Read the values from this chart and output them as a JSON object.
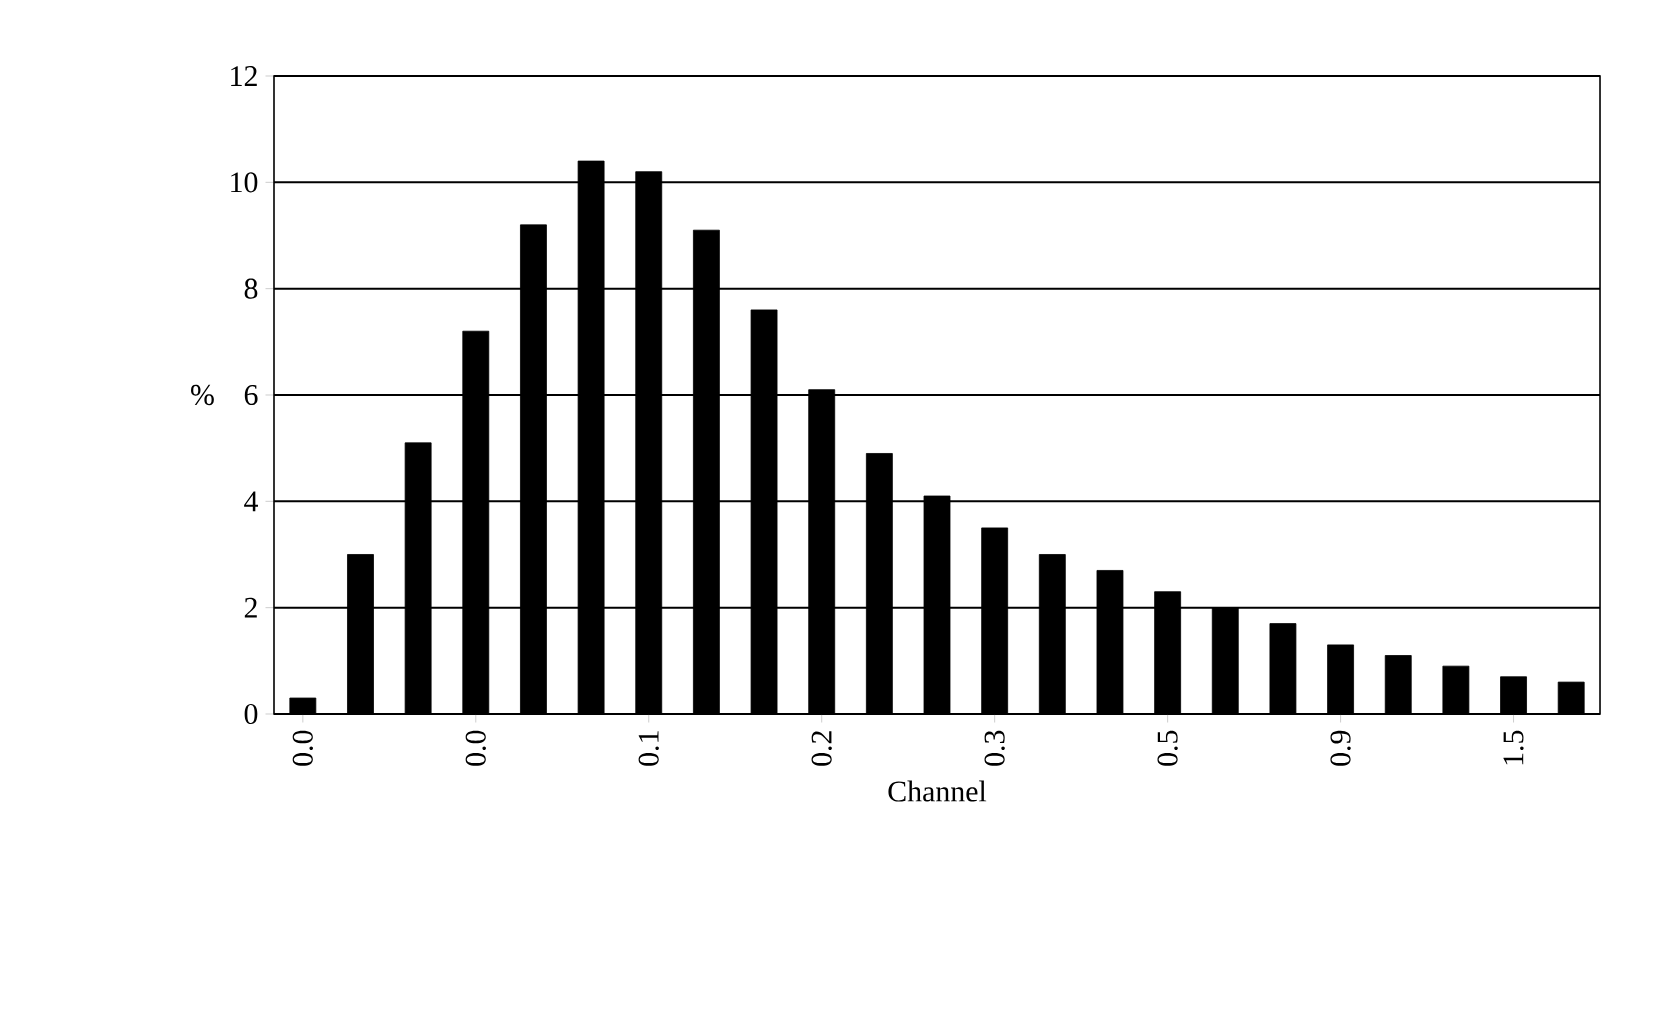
{
  "chart_data": {
    "type": "bar",
    "xlabel": "Channel",
    "ylabel": "%",
    "categories": [
      "0.0",
      null,
      null,
      "0.0",
      null,
      null,
      "0.1",
      null,
      null,
      "0.2",
      null,
      null,
      "0.3",
      null,
      null,
      "0.5",
      null,
      null,
      "0.9",
      null,
      null,
      "1.5",
      null
    ],
    "values": [
      0.3,
      3.0,
      5.1,
      7.2,
      9.2,
      10.4,
      10.2,
      9.1,
      7.6,
      6.1,
      4.9,
      4.1,
      3.5,
      3.0,
      2.7,
      2.3,
      2.0,
      1.7,
      1.3,
      1.1,
      0.9,
      0.7,
      0.6
    ],
    "color": "#000000",
    "ylim": [
      0,
      12
    ],
    "yticks": [
      0,
      2,
      4,
      6,
      8,
      10,
      12
    ],
    "grid": "y"
  }
}
